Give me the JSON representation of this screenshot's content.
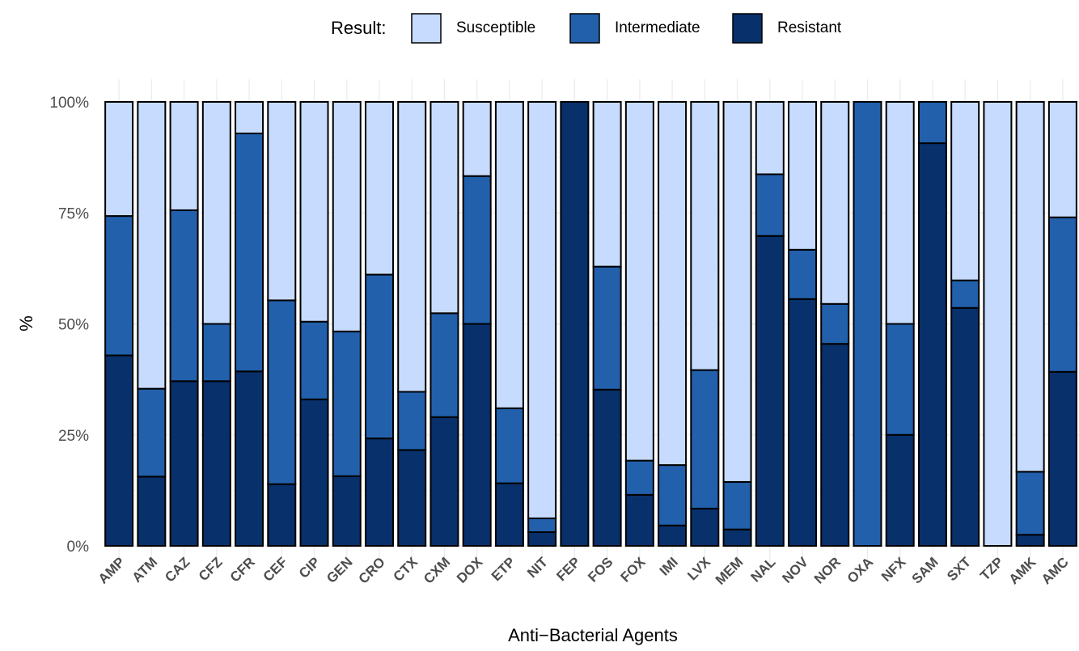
{
  "chart_data": {
    "type": "bar",
    "stacked": true,
    "percent": true,
    "xlabel": "Anti−Bacterial Agents",
    "ylabel": "%",
    "ylim": [
      0,
      100
    ],
    "yticks": [
      "0%",
      "25%",
      "50%",
      "75%",
      "100%"
    ],
    "ytick_values": [
      0,
      25,
      50,
      75,
      100
    ],
    "grid": true,
    "legend": {
      "title": "Result:",
      "position": "top"
    },
    "categories": [
      "AMP",
      "ATM",
      "CAZ",
      "CFZ",
      "CFR",
      "CEF",
      "CIP",
      "GEN",
      "CRO",
      "CTX",
      "CXM",
      "DOX",
      "ETP",
      "NIT",
      "FEP",
      "FOS",
      "FOX",
      "IMI",
      "LVX",
      "MEM",
      "NAL",
      "NOV",
      "NOR",
      "OXA",
      "NFX",
      "SAM",
      "SXT",
      "TZP",
      "AMK",
      "AMC"
    ],
    "series": [
      {
        "name": "Resistant",
        "color": "#08306b",
        "values": [
          42.9,
          15.6,
          37.1,
          37.1,
          39.3,
          13.9,
          33.0,
          15.7,
          24.2,
          21.6,
          29.0,
          50.0,
          14.1,
          3.1,
          100.0,
          35.2,
          11.5,
          4.6,
          8.4,
          3.7,
          69.8,
          55.6,
          45.5,
          0.0,
          25.0,
          90.7,
          53.6,
          0.0,
          2.5,
          39.2
        ]
      },
      {
        "name": "Intermediate",
        "color": "#2260ac",
        "values": [
          31.4,
          19.8,
          38.5,
          12.9,
          53.6,
          41.4,
          17.5,
          32.6,
          36.9,
          13.1,
          23.4,
          33.3,
          16.9,
          3.1,
          0.0,
          27.7,
          7.7,
          13.6,
          31.2,
          10.7,
          13.9,
          11.1,
          9.0,
          100.0,
          25.0,
          9.3,
          6.2,
          0.0,
          14.2,
          34.8
        ]
      },
      {
        "name": "Susceptible",
        "color": "#c6dbfe",
        "values": [
          25.7,
          64.6,
          24.4,
          50.0,
          7.1,
          44.7,
          49.5,
          51.7,
          38.9,
          65.3,
          47.6,
          16.7,
          69.0,
          93.8,
          0.0,
          37.1,
          80.8,
          81.8,
          60.4,
          85.6,
          16.3,
          33.3,
          45.5,
          0.0,
          50.0,
          0.0,
          40.2,
          100.0,
          83.3,
          26.0
        ]
      }
    ]
  }
}
